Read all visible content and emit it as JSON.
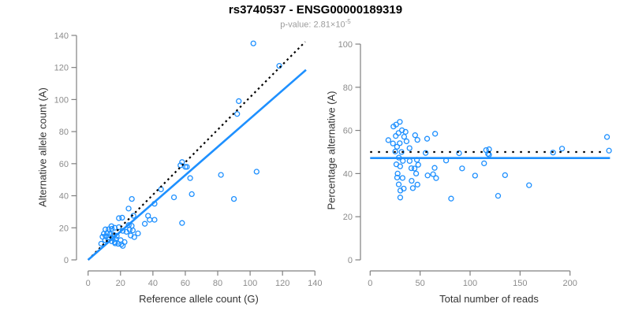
{
  "header": {
    "title": "rs3740537 - ENSG00000189319",
    "subtitle_prefix": "p-value: 2.81×10",
    "subtitle_exponent": "-5"
  },
  "colors": {
    "point": "#1E90FF",
    "fit_line": "#1E90FF",
    "reference_line": "#000000",
    "axis_line": "#808080",
    "tick_label": "#8c8c8c",
    "axis_title": "#333333",
    "title": "#000000",
    "subtitle": "#9c9c9c",
    "background": "#ffffff"
  },
  "chart_data": [
    {
      "type": "scatter",
      "name": "allele-counts-scatter",
      "xlabel": "Reference allele count (G)",
      "ylabel": "Alternative allele count (A)",
      "xlim": [
        0,
        140
      ],
      "ylim": [
        0,
        140
      ],
      "xticks": [
        0,
        20,
        40,
        60,
        80,
        100,
        120,
        140
      ],
      "yticks": [
        0,
        20,
        40,
        60,
        80,
        100,
        120,
        140
      ],
      "grid": false,
      "legend": "none",
      "marker": "open-circle",
      "points": [
        [
          8.1,
          10.1
        ],
        [
          8.9,
          14.4
        ],
        [
          9.7,
          16.3
        ],
        [
          10.5,
          12.3
        ],
        [
          10.7,
          19.0
        ],
        [
          10.9,
          14.7
        ],
        [
          11.7,
          16.7
        ],
        [
          12.5,
          12.6
        ],
        [
          12.7,
          19.1
        ],
        [
          12.8,
          14.1
        ],
        [
          13.6,
          16.0
        ],
        [
          14.4,
          21.0
        ],
        [
          14.6,
          19.4
        ],
        [
          14.6,
          11.6
        ],
        [
          15.1,
          13.6
        ],
        [
          15.7,
          15.7
        ],
        [
          16.4,
          20.0
        ],
        [
          16.5,
          11.0
        ],
        [
          16.7,
          10.3
        ],
        [
          17.0,
          13.0
        ],
        [
          17.7,
          15.0
        ],
        [
          18.6,
          10.0
        ],
        [
          19.0,
          26.0
        ],
        [
          19.0,
          20.4
        ],
        [
          20.1,
          12.3
        ],
        [
          20.5,
          9.7
        ],
        [
          21.0,
          26.3
        ],
        [
          21.4,
          18.1
        ],
        [
          21.4,
          8.7
        ],
        [
          22.5,
          11.1
        ],
        [
          23.7,
          17.5
        ],
        [
          25.1,
          21.7
        ],
        [
          25.6,
          18.8
        ],
        [
          26.3,
          15.2
        ],
        [
          26.9,
          21.2
        ],
        [
          27.6,
          18.4
        ],
        [
          28.5,
          14.2
        ],
        [
          30.8,
          16.5
        ],
        [
          25,
          32
        ],
        [
          27,
          38
        ],
        [
          28,
          27.5
        ],
        [
          35,
          22.5
        ],
        [
          37,
          27.5
        ],
        [
          38,
          25
        ],
        [
          41,
          25
        ],
        [
          41,
          35
        ],
        [
          45,
          44
        ],
        [
          53,
          39
        ],
        [
          57,
          59
        ],
        [
          58,
          61
        ],
        [
          60,
          58
        ],
        [
          61,
          58
        ],
        [
          63,
          51
        ],
        [
          64,
          41
        ],
        [
          58,
          23
        ],
        [
          82,
          53
        ],
        [
          90,
          38
        ],
        [
          104,
          55
        ],
        [
          92,
          91
        ],
        [
          93,
          99
        ],
        [
          102,
          135
        ],
        [
          118,
          121
        ]
      ],
      "lines": [
        {
          "name": "identity-line",
          "style": "dotted",
          "color": "#000000",
          "x1": 0,
          "y1": 0,
          "x2": 134,
          "y2": 136
        },
        {
          "name": "fit-line",
          "style": "solid",
          "color": "#1E90FF",
          "x1": 0,
          "y1": 0,
          "x2": 134.5,
          "y2": 118.5
        }
      ]
    },
    {
      "type": "scatter",
      "name": "percentage-vs-coverage-scatter",
      "xlabel": "Total number of reads",
      "ylabel": "Percentage alternative (A)",
      "xlim": [
        0,
        240
      ],
      "ylim": [
        0,
        100
      ],
      "xticks": [
        0,
        50,
        100,
        150,
        200
      ],
      "yticks": [
        0,
        20,
        40,
        60,
        80,
        100
      ],
      "grid": false,
      "legend": "none",
      "marker": "open-circle",
      "points_source": "derived_from_chart_0",
      "derivation": "x = G + A ; y = 100 * A / (G + A)",
      "lines": [
        {
          "name": "fifty-percent-line",
          "style": "dotted",
          "color": "#000000",
          "x1": 0,
          "y1": 50,
          "x2": 236,
          "y2": 50
        },
        {
          "name": "mean-percentage-line",
          "style": "solid",
          "color": "#1E90FF",
          "x1": 0,
          "y1": 47.2,
          "x2": 240,
          "y2": 47.2
        }
      ]
    }
  ]
}
